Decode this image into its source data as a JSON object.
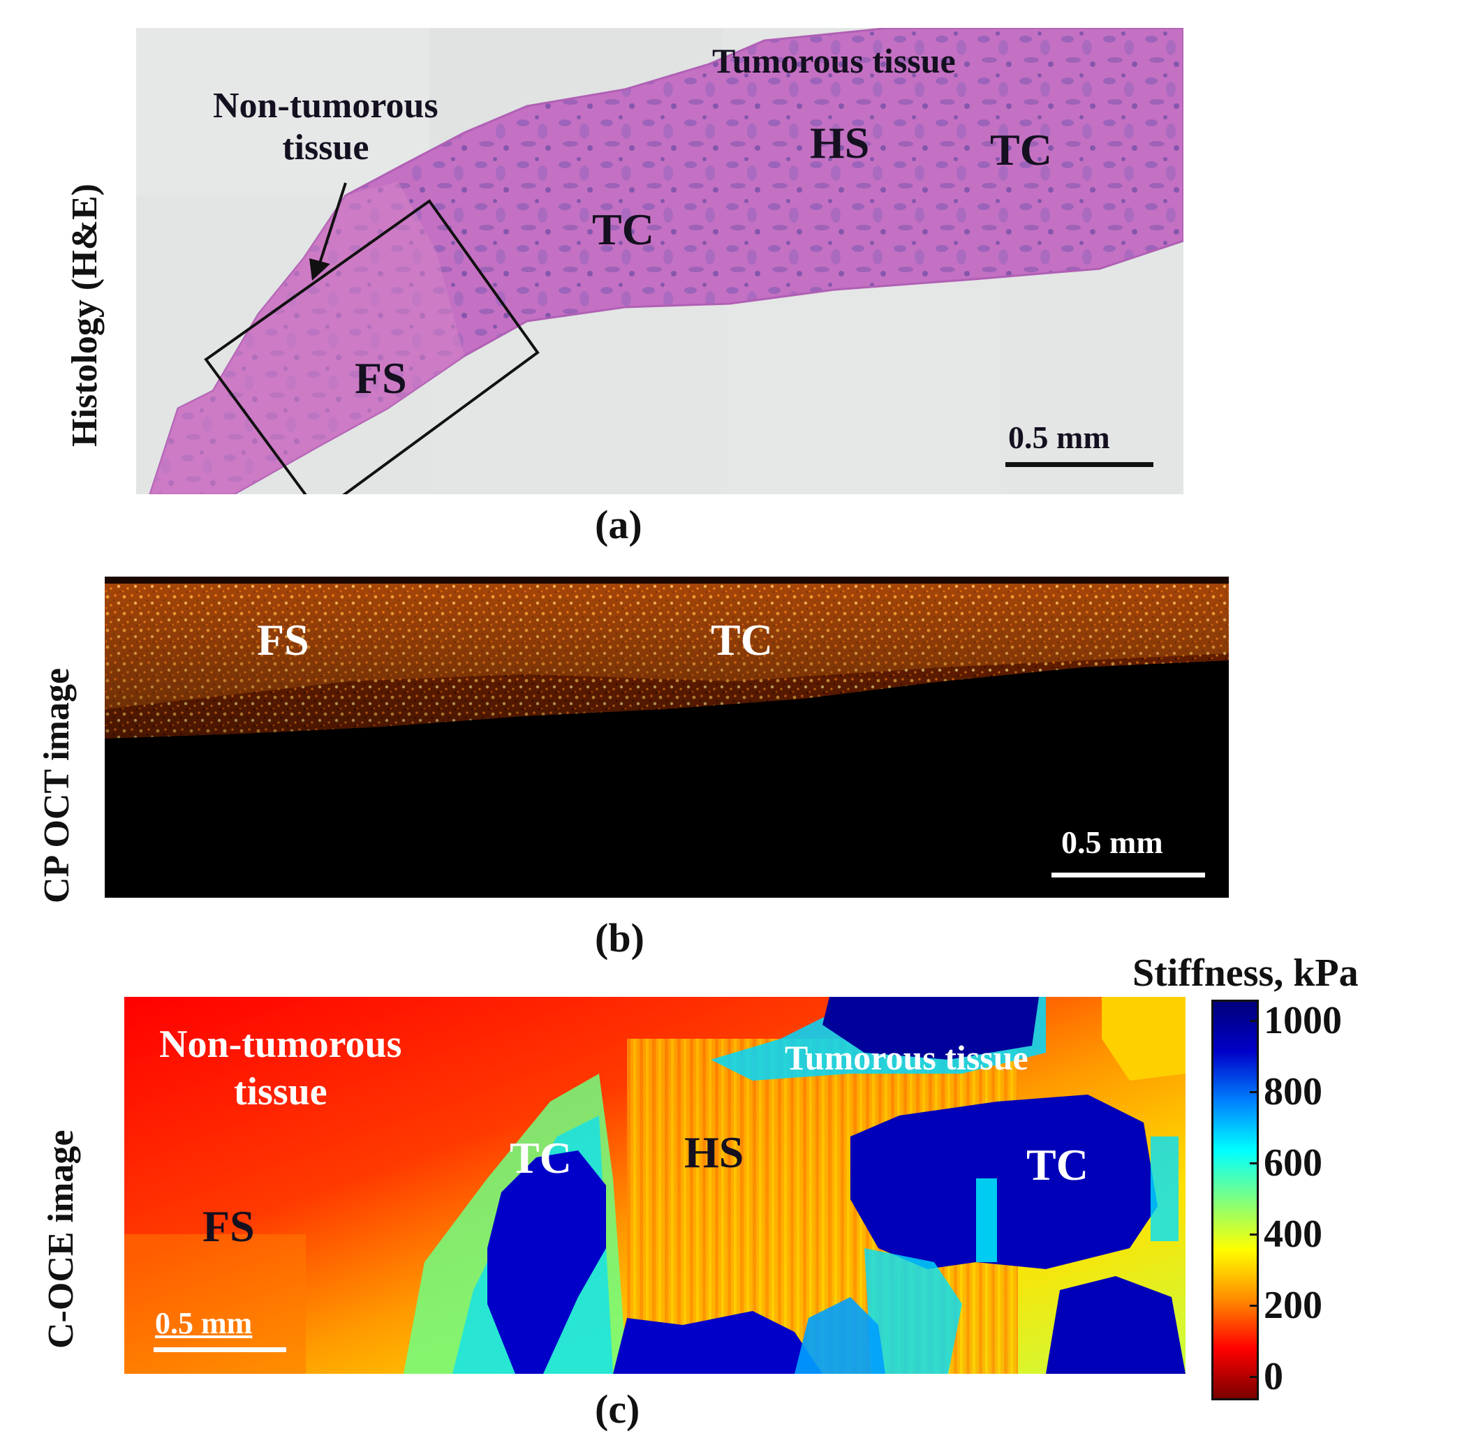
{
  "panel_a": {
    "axis_label": "Histology (H&E)",
    "caption": "(a)",
    "labels": {
      "tumorous": "Tumorous tissue",
      "non_tumorous": "Non-tumorous\ntissue",
      "hs": "HS",
      "tc1": "TC",
      "tc2": "TC",
      "fs": "FS"
    },
    "scale_bar": "0.5 mm"
  },
  "panel_b": {
    "axis_label": "CP OCT image",
    "caption": "(b)",
    "labels": {
      "fs": "FS",
      "tc": "TC"
    },
    "scale_bar": "0.5 mm"
  },
  "panel_c": {
    "axis_label": "C-OCE image",
    "caption": "(c)",
    "labels": {
      "non_tumorous": "Non-tumorous\ntissue",
      "tumorous": "Tumorous tissue",
      "fs": "FS",
      "tc1": "TC",
      "hs": "HS",
      "tc2": "TC"
    },
    "scale_bar": "0.5 mm"
  },
  "colorbar": {
    "title": "Stiffness, kPa",
    "ticks": [
      "1000",
      "800",
      "600",
      "400",
      "200",
      "0"
    ],
    "range": [
      0,
      1000
    ],
    "colormap": [
      "#7a0000",
      "#ff0000",
      "#ff8c00",
      "#ffff00",
      "#7fff7f",
      "#00ffff",
      "#0080ff",
      "#0000c8",
      "#00007a"
    ]
  },
  "colors": {
    "histology_background": "#e3e6e4",
    "tissue_stain": "#c36fc2",
    "oct_signal": "#ff9a1a",
    "oct_background": "#000000"
  }
}
